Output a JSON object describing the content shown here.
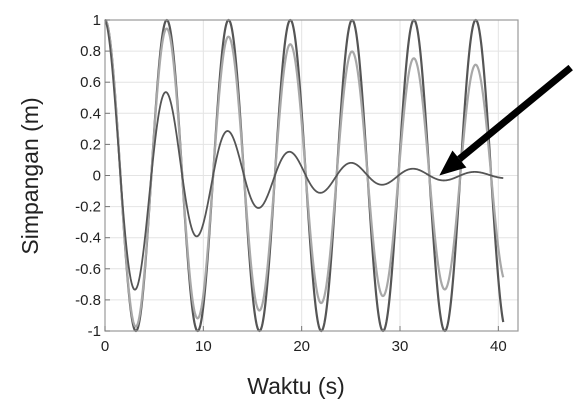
{
  "chart_data": {
    "type": "line",
    "title": "",
    "xlabel": "Waktu (s)",
    "ylabel": "Simpangan (m)",
    "xlim": [
      0,
      42
    ],
    "ylim": [
      -1,
      1
    ],
    "x_ticks": [
      0,
      10,
      20,
      30,
      40
    ],
    "x_tick_labels": [
      "0",
      "10",
      "20",
      "30",
      "40"
    ],
    "y_ticks": [
      1,
      0.8,
      0.6,
      0.4,
      0.2,
      0,
      -0.2,
      -0.4,
      -0.6,
      -0.8,
      -1
    ],
    "y_tick_labels": [
      "1",
      "0.8",
      "0.6",
      "0.4",
      "0.2",
      "0",
      "-0.2",
      "-0.4",
      "-0.6",
      "-0.8",
      "-1"
    ],
    "grid": true,
    "legend": "none",
    "x_end": 40.5,
    "series": [
      {
        "function": "damped-cosine",
        "amplitude": 1,
        "damping_per_s": 0,
        "angular_frequency_rad_per_s": 1.0,
        "color": "#555555"
      },
      {
        "function": "damped-cosine",
        "amplitude": 1,
        "damping_per_s": 0.009,
        "angular_frequency_rad_per_s": 1.0,
        "color": "#a8a8a8"
      },
      {
        "function": "damped-cosine",
        "amplitude": 1,
        "damping_per_s": 0.1,
        "angular_frequency_rad_per_s": 1.0,
        "color": "#555555"
      }
    ],
    "annotations": [
      {
        "type": "arrow",
        "points_to": {
          "x": 34,
          "y": 0
        },
        "color": "#000000"
      }
    ]
  }
}
